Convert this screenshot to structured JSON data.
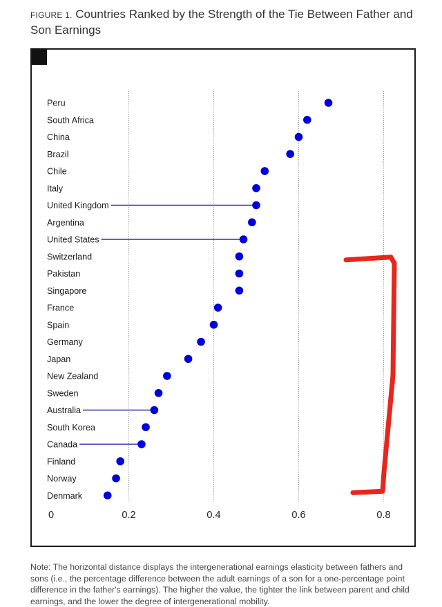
{
  "figure": {
    "label": "FIGURE 1.",
    "title": "Countries Ranked by the Strength of the Tie Between Father and Son Earnings"
  },
  "note": "Note: The horizontal distance displays the intergenerational earnings elasticity between fathers and sons (i.e., the percentage difference between the adult earnings of a son for a one-percentage point difference in the father's earnings). The higher the value, the tighter the link between parent and child earnings, and the lower the degree of intergenerational mobility.",
  "chart_data": {
    "type": "scatter",
    "title": "Countries Ranked by the Strength of the Tie Between Father and Son Earnings",
    "xlabel": "",
    "ylabel": "",
    "xlim": [
      0,
      0.8
    ],
    "x_ticks": [
      0,
      0.2,
      0.4,
      0.6,
      0.8
    ],
    "x_tick_labels": [
      "0",
      "0.2",
      "0.4",
      "0.6",
      "0.8"
    ],
    "grid": "vertical dotted at 0.2, 0.4, 0.6, 0.8",
    "point_color": "#0000dd",
    "connector_color": "#2b2bb0",
    "categories": [
      "Peru",
      "South Africa",
      "China",
      "Brazil",
      "Chile",
      "Italy",
      "United Kingdom",
      "Argentina",
      "United States",
      "Switzerland",
      "Pakistan",
      "Singapore",
      "France",
      "Spain",
      "Germany",
      "Japan",
      "New Zealand",
      "Sweden",
      "Australia",
      "South Korea",
      "Canada",
      "Finland",
      "Norway",
      "Denmark"
    ],
    "values": [
      0.67,
      0.62,
      0.6,
      0.58,
      0.52,
      0.5,
      0.5,
      0.49,
      0.47,
      0.46,
      0.46,
      0.46,
      0.41,
      0.4,
      0.37,
      0.34,
      0.29,
      0.27,
      0.26,
      0.24,
      0.23,
      0.18,
      0.17,
      0.15
    ],
    "highlighted": [
      "United Kingdom",
      "United States",
      "Australia",
      "Canada"
    ]
  },
  "annotation": {
    "type": "hand-drawn bracket",
    "color": "#e8271c",
    "spans": [
      "Switzerland",
      "Denmark"
    ]
  }
}
